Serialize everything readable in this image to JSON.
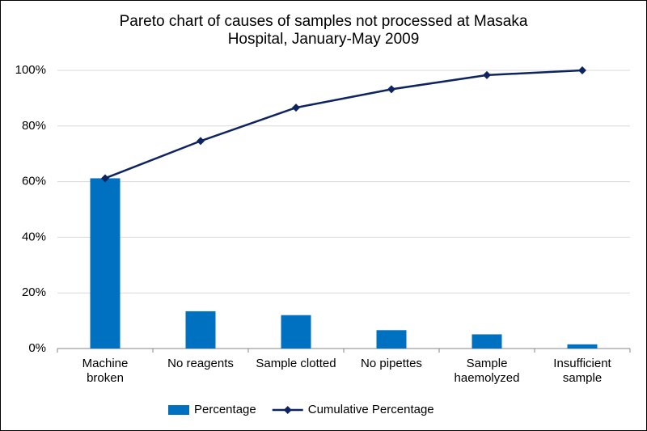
{
  "chart_data": {
    "type": "pareto",
    "title": "Pareto chart of causes of samples not processed at Masaka Hospital, January-May 2009",
    "categories": [
      "Machine broken",
      "No reagents",
      "Sample clotted",
      "No pipettes",
      "Sample haemolyzed",
      "Insufficient sample"
    ],
    "series": [
      {
        "name": "Percentage",
        "type": "bar",
        "color": "#0070c0",
        "values": [
          61.2,
          13.4,
          12.0,
          6.6,
          5.1,
          1.5
        ]
      },
      {
        "name": "Cumulative Percentage",
        "type": "line",
        "color": "#0d2460",
        "values": [
          61.2,
          74.6,
          86.6,
          93.2,
          98.3,
          100
        ]
      }
    ],
    "ylim": [
      0,
      100
    ],
    "yticks": [
      {
        "value": 0,
        "label": "0%"
      },
      {
        "value": 20,
        "label": "20%"
      },
      {
        "value": 40,
        "label": "40%"
      },
      {
        "value": 60,
        "label": "60%"
      },
      {
        "value": 80,
        "label": "80%"
      },
      {
        "value": 100,
        "label": "100%"
      }
    ],
    "grid": true,
    "legend": "bottom"
  }
}
